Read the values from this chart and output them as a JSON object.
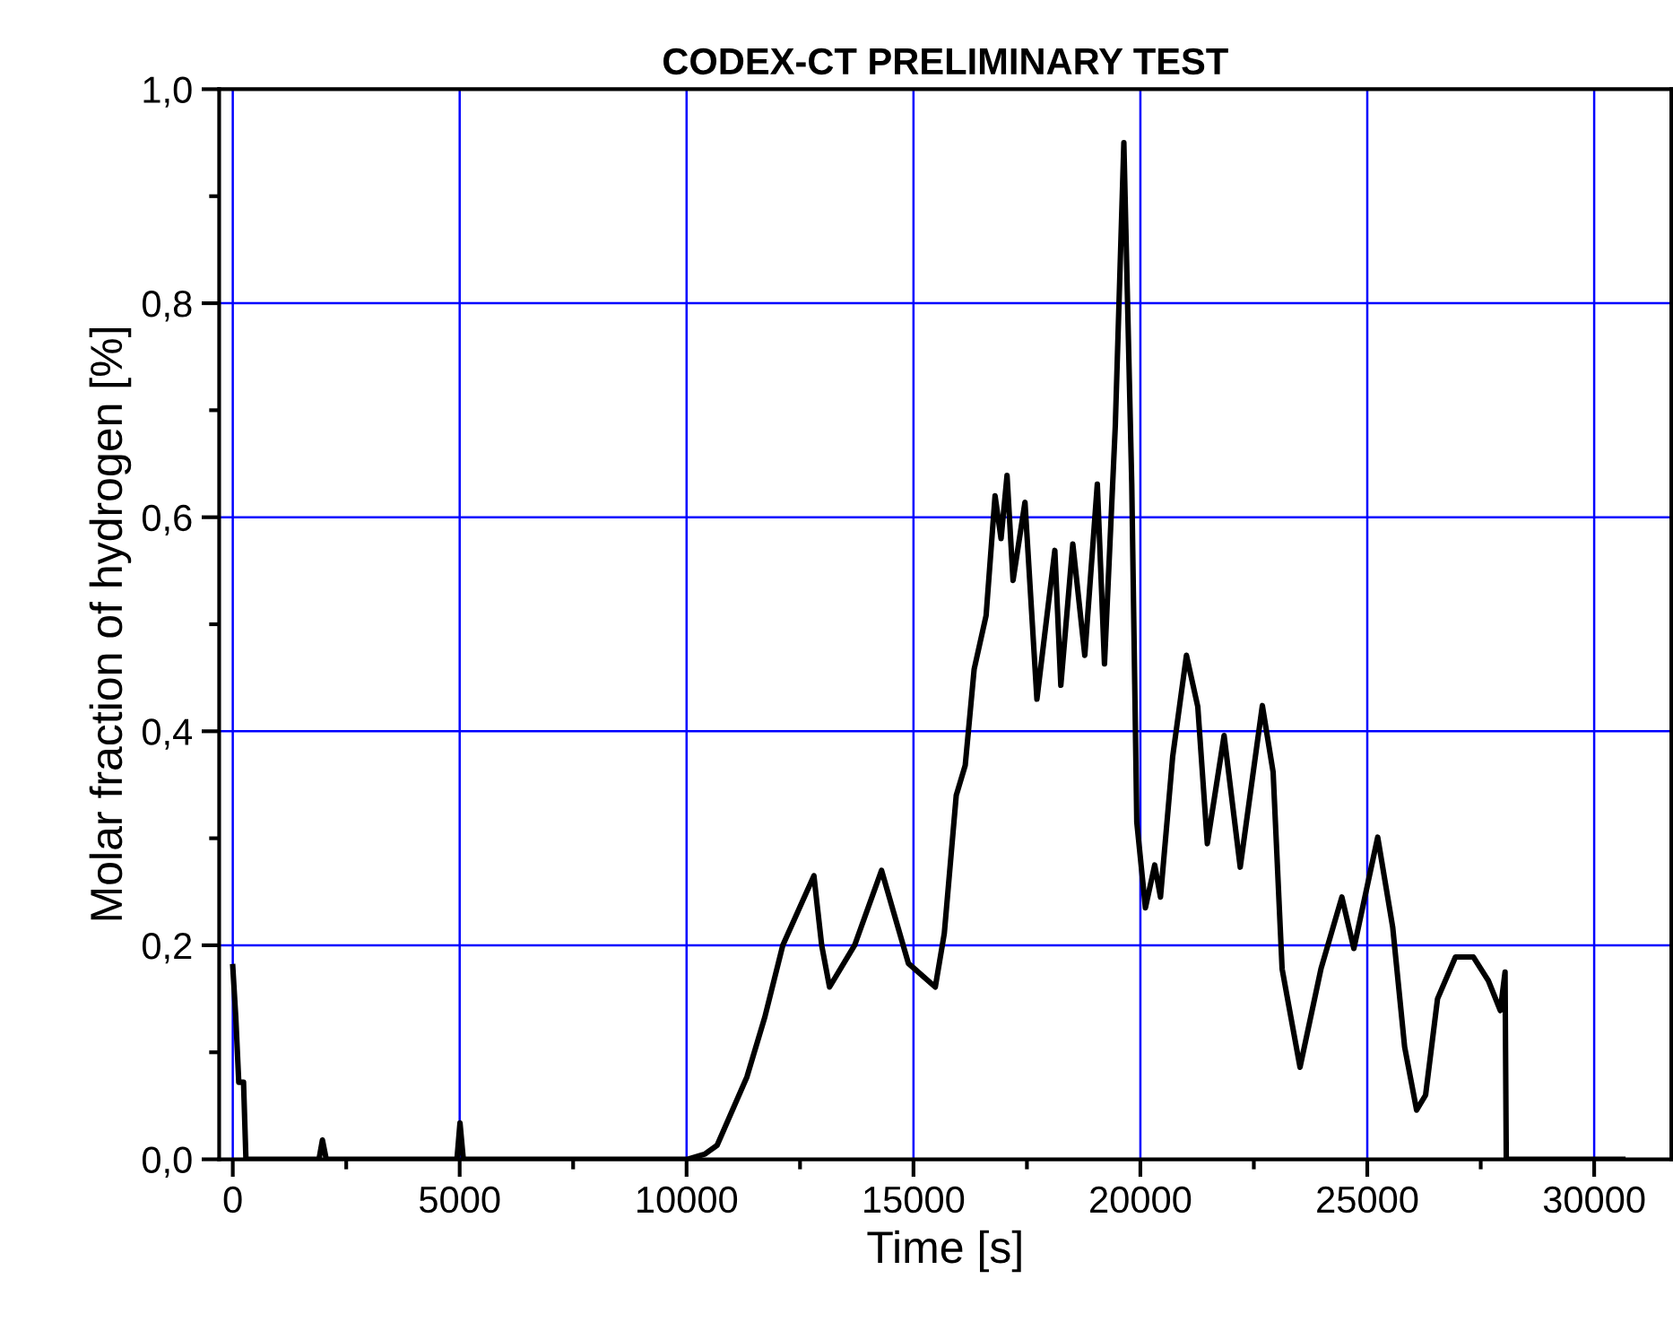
{
  "chart_data": {
    "type": "line",
    "title": "CODEX-CT PRELIMINARY TEST",
    "xlabel": "Time [s]",
    "ylabel": "Molar fraction of hydrogen [%]",
    "xlim": [
      -300,
      31700
    ],
    "ylim": [
      0,
      1.0
    ],
    "xticks": [
      0,
      {
        "value": 2500,
        "label": null
      },
      5000,
      {
        "value": 7500,
        "label": null
      },
      10000,
      {
        "value": 12500,
        "label": null
      },
      15000,
      {
        "value": 17500,
        "label": null
      },
      20000,
      {
        "value": 22500,
        "label": null
      },
      25000,
      {
        "value": 27500,
        "label": null
      },
      30000
    ],
    "yticks": [
      {
        "value": 0,
        "label": "0,0"
      },
      {
        "value": 0.1,
        "label": null
      },
      {
        "value": 0.2,
        "label": "0,2"
      },
      {
        "value": 0.3,
        "label": null
      },
      {
        "value": 0.4,
        "label": "0,4"
      },
      {
        "value": 0.5,
        "label": null
      },
      {
        "value": 0.6,
        "label": "0,6"
      },
      {
        "value": 0.7,
        "label": null
      },
      {
        "value": 0.8,
        "label": "0,8"
      },
      {
        "value": 0.9,
        "label": null
      },
      {
        "value": 1.0,
        "label": "1,0"
      }
    ],
    "grid": true,
    "marker": "none",
    "line_style": "solid",
    "series": [
      {
        "color": "#000000",
        "x": [
          0,
          66,
          132,
          237,
          290,
          1900,
          1976,
          2060,
          4940,
          5007,
          5080,
          10012,
          10409,
          10672,
          11330,
          11725,
          12120,
          12648,
          12806,
          12977,
          13150,
          13703,
          14296,
          14888,
          15481,
          15679,
          15942,
          16140,
          16337,
          16600,
          16798,
          16930,
          17062,
          17194,
          17457,
          17720,
          18115,
          18247,
          18511,
          18775,
          19051,
          19209,
          19447,
          19636,
          19810,
          19921,
          20111,
          20316,
          20443,
          20711,
          21015,
          21265,
          21475,
          21845,
          22200,
          22688,
          22925,
          23123,
          23518,
          23980,
          24440,
          24704,
          25230,
          25560,
          25823,
          26087,
          26285,
          26548,
          26943,
          27339,
          27668,
          27931,
          28036,
          28063,
          30632
        ],
        "values": [
          0.18,
          0.133,
          0.072,
          0.072,
          0,
          0,
          0.018,
          0,
          0,
          0.034,
          0,
          0,
          0.005,
          0.013,
          0.077,
          0.133,
          0.2,
          0.25,
          0.265,
          0.2,
          0.161,
          0.2,
          0.27,
          0.183,
          0.161,
          0.211,
          0.34,
          0.368,
          0.458,
          0.508,
          0.62,
          0.58,
          0.639,
          0.541,
          0.614,
          0.43,
          0.569,
          0.443,
          0.575,
          0.471,
          0.631,
          0.463,
          0.685,
          0.95,
          0.631,
          0.315,
          0.235,
          0.275,
          0.245,
          0.376,
          0.471,
          0.423,
          0.295,
          0.396,
          0.273,
          0.424,
          0.362,
          0.178,
          0.086,
          0.178,
          0.245,
          0.197,
          0.301,
          0.217,
          0.105,
          0.046,
          0.06,
          0.15,
          0.189,
          0.189,
          0.167,
          0.139,
          0.175,
          0,
          0
        ]
      }
    ]
  }
}
